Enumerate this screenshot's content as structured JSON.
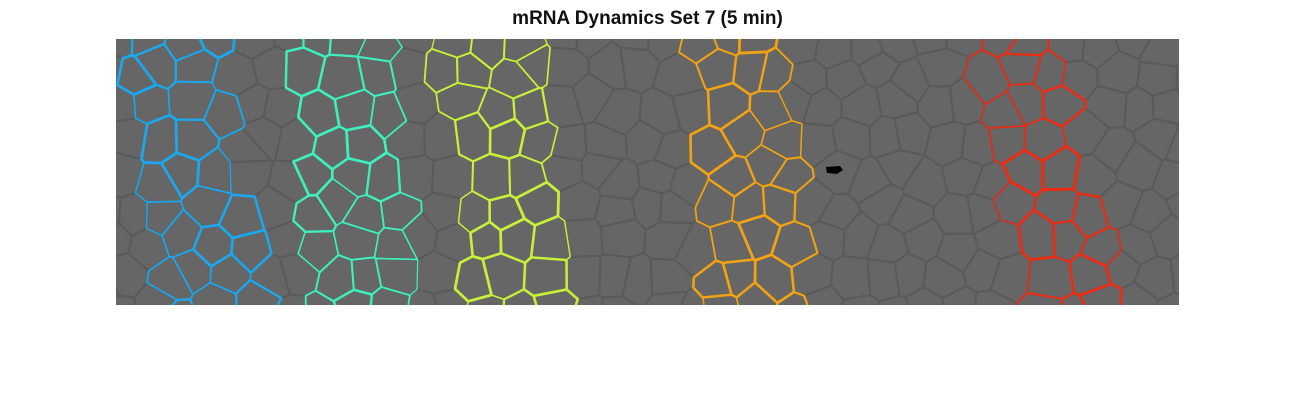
{
  "figure": {
    "title": "mRNA Dynamics Set 7 (5 min)"
  },
  "image": {
    "background_color": "#666666",
    "tissue_edge_color": "#5a5a5a",
    "marker_color": "#000000",
    "stripes": [
      {
        "id": "stripe-1",
        "color": "#1aa8ee"
      },
      {
        "id": "stripe-2",
        "color": "#3ef0be"
      },
      {
        "id": "stripe-3",
        "color": "#c8f03a"
      },
      {
        "id": "stripe-4",
        "color": "#f2a314"
      },
      {
        "id": "stripe-5",
        "color": "#ee2a12"
      }
    ]
  }
}
